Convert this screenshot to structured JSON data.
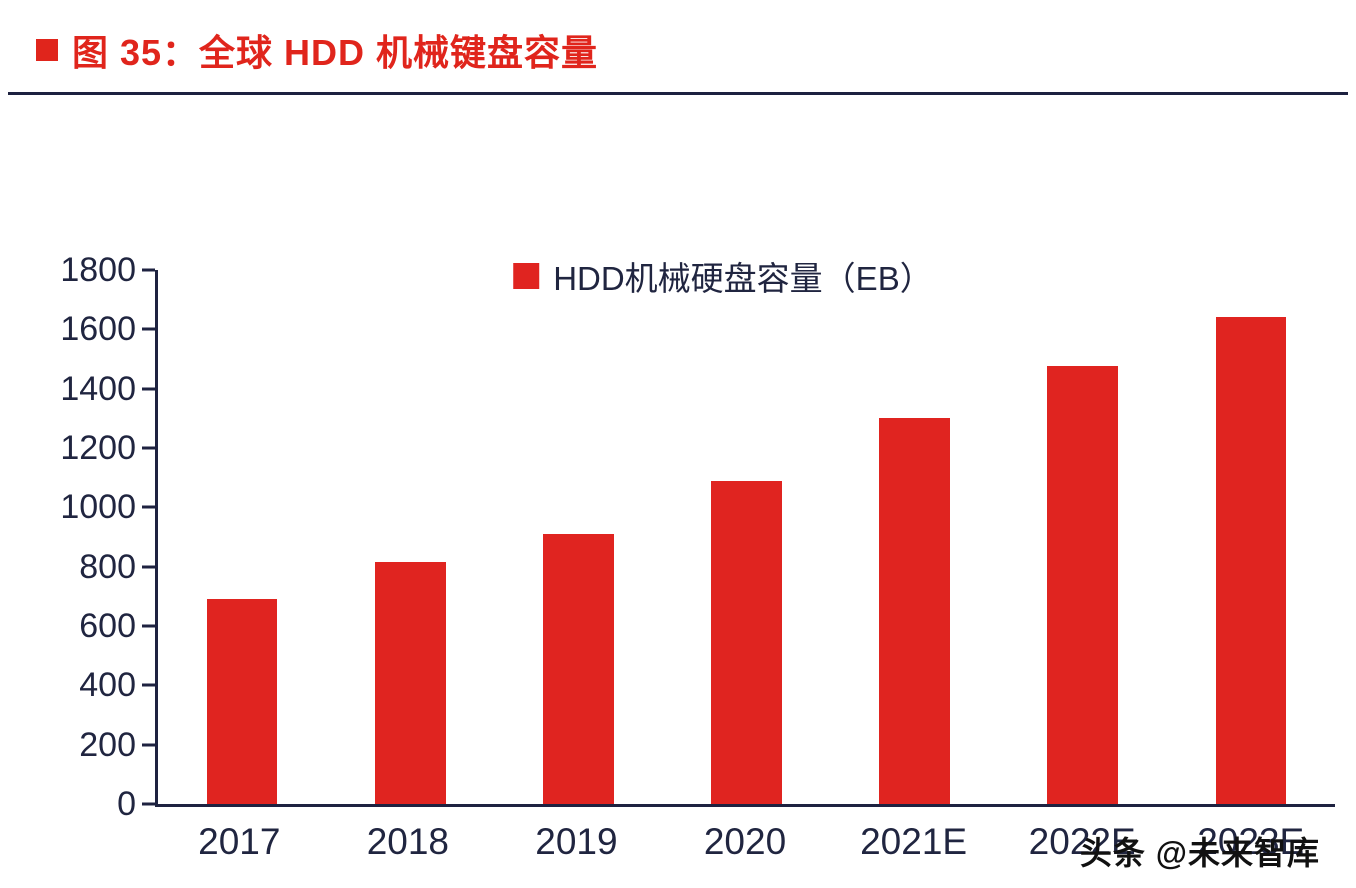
{
  "header": {
    "title": "图 35：全球 HDD 机械键盘容量"
  },
  "legend": {
    "label": "HDD机械硬盘容量（EB）"
  },
  "watermark": {
    "text": "头条 @未来智库"
  },
  "colors": {
    "bar": "#e02420",
    "axis": "#1e2240",
    "title": "#e0251c",
    "tick_text": "#202540"
  },
  "chart_data": {
    "type": "bar",
    "title": "图 35：全球 HDD 机械键盘容量",
    "legend": "HDD机械硬盘容量（EB）",
    "categories": [
      "2017",
      "2018",
      "2019",
      "2020",
      "2021E",
      "2022E",
      "2023E"
    ],
    "values": [
      690,
      815,
      910,
      1090,
      1300,
      1475,
      1640
    ],
    "xlabel": "",
    "ylabel": "",
    "ylim": [
      0,
      1800
    ],
    "ytick_step": 200,
    "grid": false,
    "legend_position": "top-center",
    "bar_color": "#e02420"
  }
}
